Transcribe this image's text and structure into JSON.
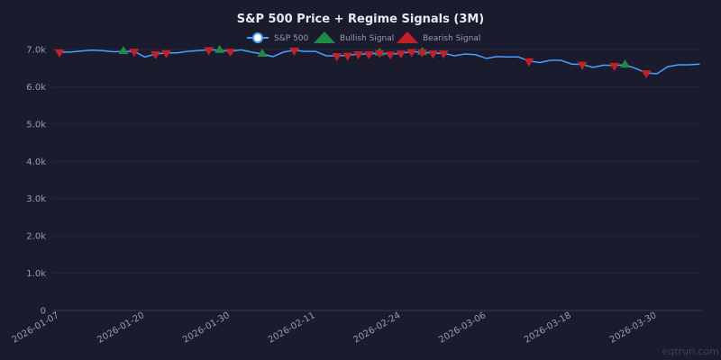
{
  "chart_data": {
    "type": "line",
    "title": "S&P 500 Price + Regime Signals (3M)",
    "xlabel": "",
    "ylabel": "",
    "ylim": [
      0,
      7000
    ],
    "yticks": [
      0,
      1000,
      2000,
      3000,
      4000,
      5000,
      6000,
      7000
    ],
    "ytick_labels": [
      "0",
      "1.0k",
      "2.0k",
      "3.0k",
      "4.0k",
      "5.0k",
      "6.0k",
      "7.0k"
    ],
    "xtick_labels": [
      "2026-01-07",
      "2026-01-20",
      "2026-01-30",
      "2026-02-11",
      "2026-02-24",
      "2026-03-06",
      "2026-03-18",
      "2026-03-30"
    ],
    "grid": true,
    "legend_placement": "top-center",
    "x": [
      "2026-01-07",
      "2026-01-08",
      "2026-01-09",
      "2026-01-12",
      "2026-01-13",
      "2026-01-14",
      "2026-01-15",
      "2026-01-16",
      "2026-01-20",
      "2026-01-21",
      "2026-01-22",
      "2026-01-23",
      "2026-01-26",
      "2026-01-27",
      "2026-01-28",
      "2026-01-29",
      "2026-01-30",
      "2026-02-02",
      "2026-02-03",
      "2026-02-04",
      "2026-02-05",
      "2026-02-06",
      "2026-02-09",
      "2026-02-10",
      "2026-02-11",
      "2026-02-12",
      "2026-02-13",
      "2026-02-17",
      "2026-02-18",
      "2026-02-19",
      "2026-02-20",
      "2026-02-23",
      "2026-02-24",
      "2026-02-25",
      "2026-02-26",
      "2026-02-27",
      "2026-03-02",
      "2026-03-03",
      "2026-03-04",
      "2026-03-05",
      "2026-03-06",
      "2026-03-09",
      "2026-03-10",
      "2026-03-11",
      "2026-03-12",
      "2026-03-13",
      "2026-03-16",
      "2026-03-17",
      "2026-03-18",
      "2026-03-19",
      "2026-03-20",
      "2026-03-23",
      "2026-03-24",
      "2026-03-25",
      "2026-03-26",
      "2026-03-27",
      "2026-03-30",
      "2026-03-31",
      "2026-04-01",
      "2026-04-02",
      "2026-04-03"
    ],
    "series": [
      {
        "name": "S&P 500",
        "color": "#4a9eff",
        "values": [
          6930,
          6930,
          6960,
          6980,
          6970,
          6940,
          6950,
          6950,
          6800,
          6880,
          6910,
          6910,
          6950,
          6970,
          6990,
          6980,
          6950,
          6990,
          6930,
          6880,
          6810,
          6930,
          6980,
          6950,
          6950,
          6830,
          6830,
          6840,
          6880,
          6880,
          6910,
          6870,
          6900,
          6940,
          6930,
          6900,
          6900,
          6830,
          6880,
          6860,
          6760,
          6810,
          6800,
          6800,
          6690,
          6650,
          6710,
          6710,
          6610,
          6600,
          6520,
          6580,
          6570,
          6590,
          6490,
          6370,
          6350,
          6540,
          6590,
          6590,
          6610
        ]
      },
      {
        "name": "Bullish Signal",
        "color": "#1e8a44",
        "marker": "triangle-up",
        "indices": [
          6,
          15,
          19,
          30,
          34,
          53
        ]
      },
      {
        "name": "Bearish Signal",
        "color": "#c0202a",
        "marker": "triangle-down",
        "indices": [
          0,
          7,
          9,
          10,
          14,
          16,
          22,
          26,
          27,
          28,
          29,
          30,
          31,
          32,
          33,
          34,
          35,
          36,
          44,
          49,
          52,
          55
        ]
      }
    ]
  },
  "watermark": "eqtrun.com",
  "colors": {
    "background": "#1a1b2d",
    "grid": "#24263a",
    "axis": "#36385a"
  }
}
